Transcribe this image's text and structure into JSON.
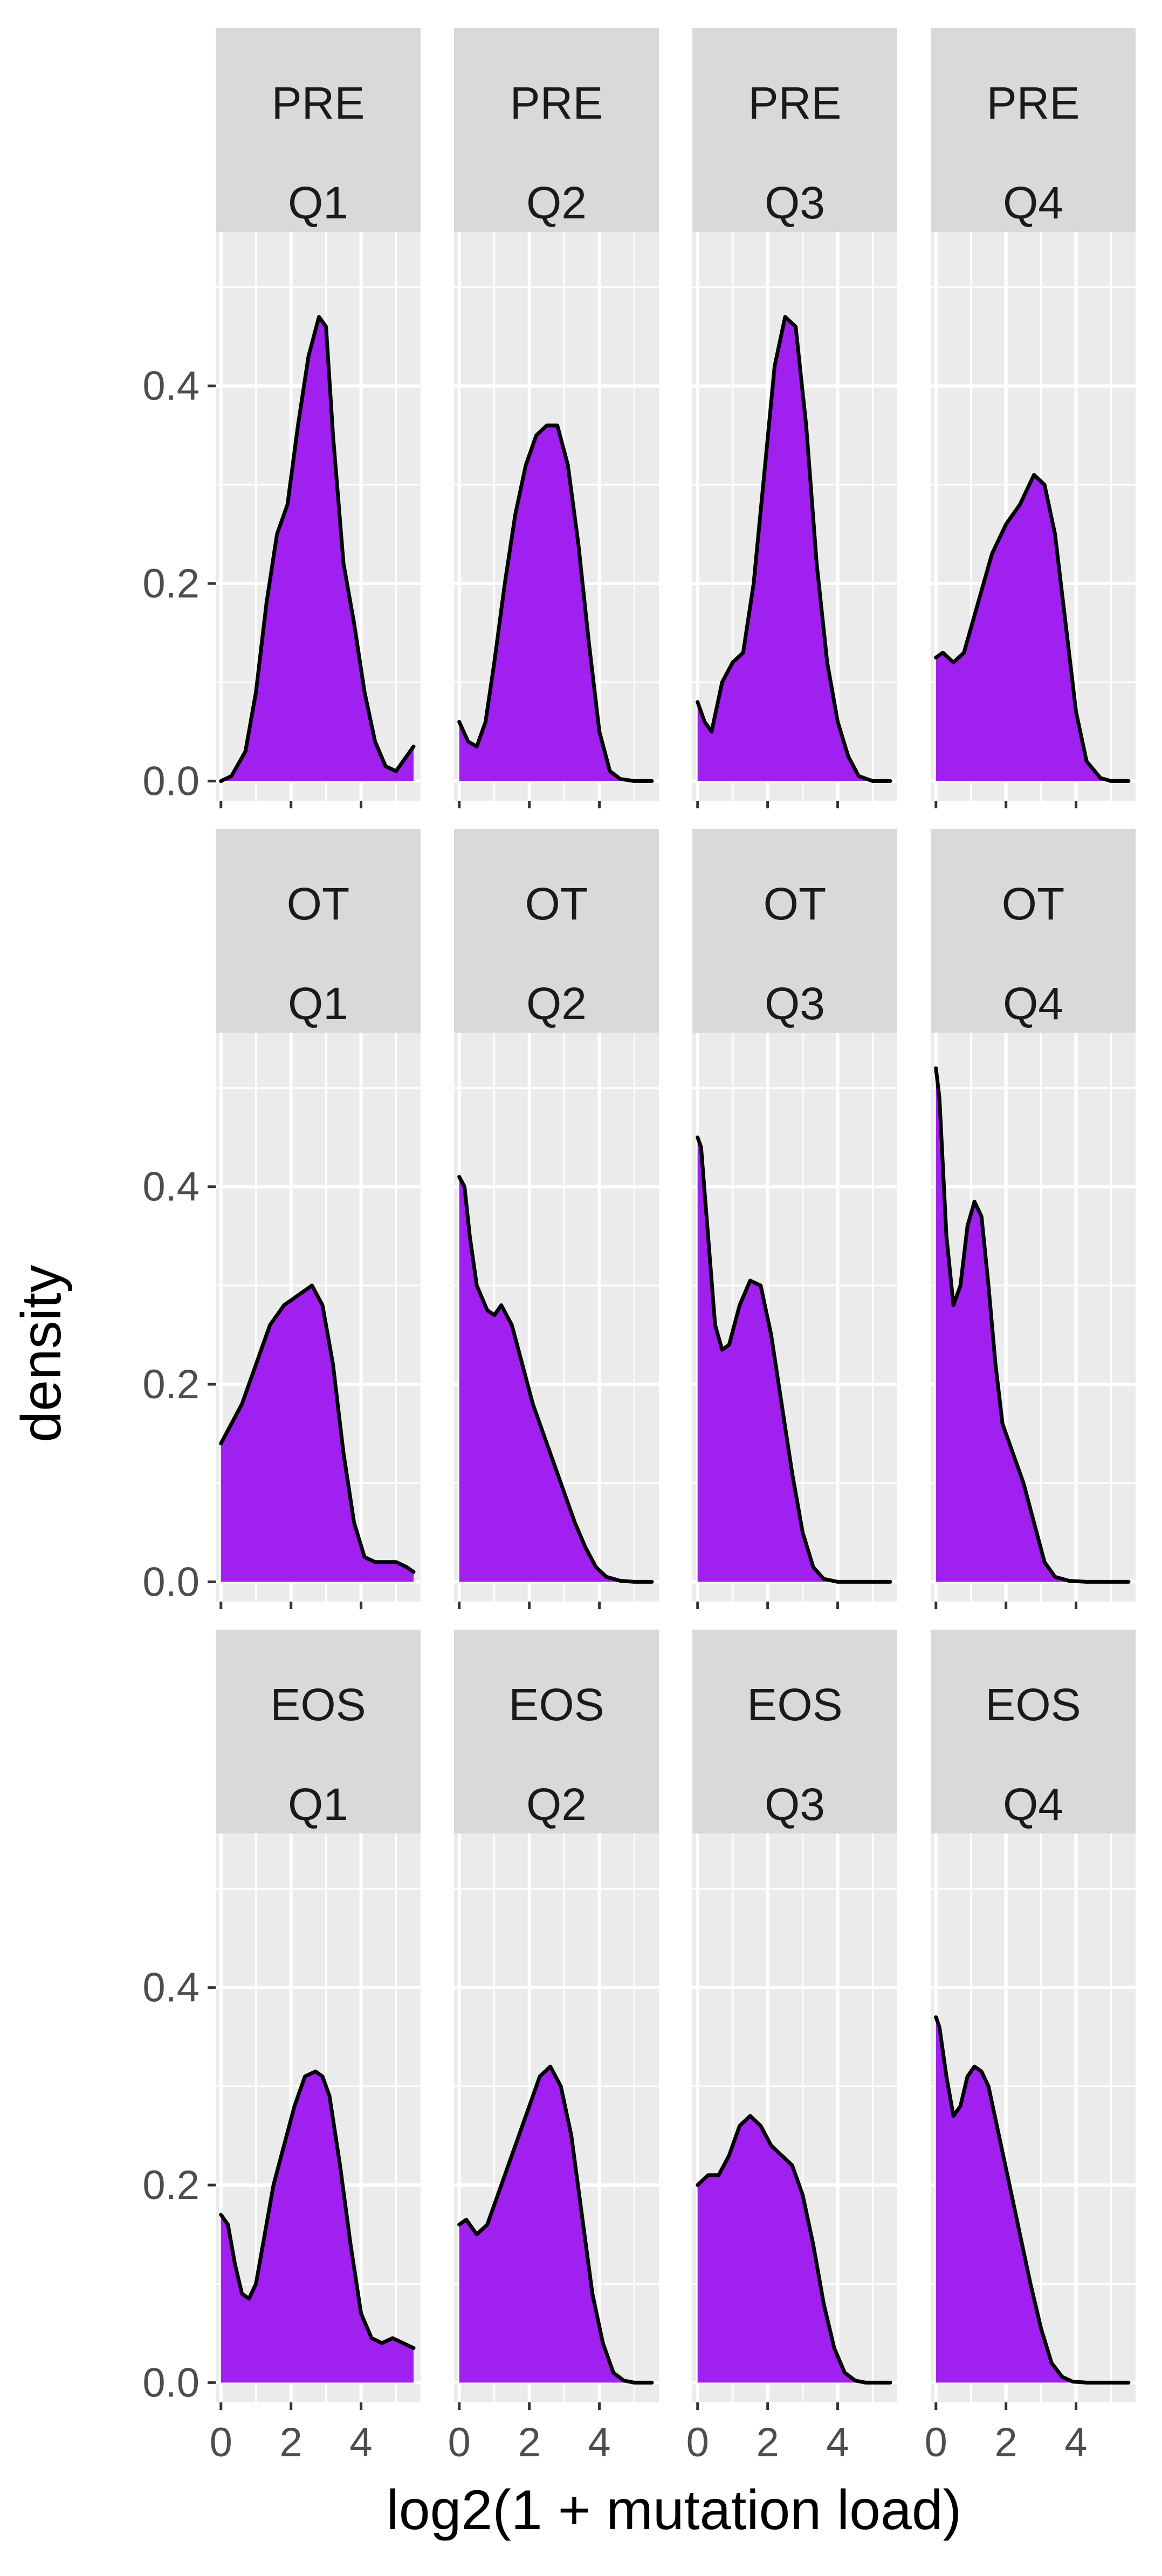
{
  "chart_data": {
    "type": "area",
    "subtype": "faceted-density",
    "xlabel": "log2(1 + mutation load)",
    "ylabel": "density",
    "xlim": [
      -0.15,
      5.7
    ],
    "ylim": [
      -0.02,
      0.556
    ],
    "x_ticks": [
      0,
      2,
      4
    ],
    "y_ticks": [
      0.0,
      0.2,
      0.4
    ],
    "x_tick_labels": [
      "0",
      "2",
      "4"
    ],
    "y_tick_labels": [
      "0.0",
      "0.2",
      "0.4"
    ],
    "grid": true,
    "fill_color": "#A020F0",
    "line_color": "#000000",
    "panel_background": "#EBEBEB",
    "strip_background": "#D9D9D9",
    "rows": [
      "PRE",
      "OT",
      "EOS"
    ],
    "cols": [
      "Q1",
      "Q2",
      "Q3",
      "Q4"
    ],
    "panels": [
      {
        "row": "PRE",
        "col": "Q1",
        "x": [
          0,
          0.3,
          0.7,
          1.0,
          1.3,
          1.6,
          1.9,
          2.2,
          2.5,
          2.8,
          3.0,
          3.2,
          3.5,
          3.8,
          4.1,
          4.4,
          4.7,
          5.0,
          5.2,
          5.5
        ],
        "y": [
          0,
          0.005,
          0.03,
          0.09,
          0.18,
          0.25,
          0.28,
          0.36,
          0.43,
          0.47,
          0.46,
          0.35,
          0.22,
          0.16,
          0.09,
          0.04,
          0.015,
          0.01,
          0.02,
          0.035
        ]
      },
      {
        "row": "PRE",
        "col": "Q2",
        "x": [
          0,
          0.25,
          0.5,
          0.75,
          1.0,
          1.3,
          1.6,
          1.9,
          2.2,
          2.5,
          2.8,
          3.1,
          3.4,
          3.7,
          4.0,
          4.3,
          4.6,
          5.0,
          5.5
        ],
        "y": [
          0.06,
          0.04,
          0.035,
          0.06,
          0.12,
          0.2,
          0.27,
          0.32,
          0.35,
          0.36,
          0.36,
          0.32,
          0.24,
          0.14,
          0.05,
          0.01,
          0.002,
          0,
          0
        ]
      },
      {
        "row": "PRE",
        "col": "Q3",
        "x": [
          0,
          0.2,
          0.4,
          0.7,
          1.0,
          1.3,
          1.6,
          1.9,
          2.2,
          2.5,
          2.8,
          3.1,
          3.4,
          3.7,
          4.0,
          4.3,
          4.6,
          5.0,
          5.5
        ],
        "y": [
          0.08,
          0.06,
          0.05,
          0.1,
          0.12,
          0.13,
          0.2,
          0.31,
          0.42,
          0.47,
          0.46,
          0.36,
          0.22,
          0.12,
          0.06,
          0.025,
          0.005,
          0,
          0
        ]
      },
      {
        "row": "PRE",
        "col": "Q4",
        "x": [
          0,
          0.2,
          0.5,
          0.8,
          1.2,
          1.6,
          2.0,
          2.4,
          2.8,
          3.1,
          3.4,
          3.7,
          4.0,
          4.3,
          4.7,
          5.0,
          5.5
        ],
        "y": [
          0.125,
          0.13,
          0.12,
          0.13,
          0.18,
          0.23,
          0.26,
          0.28,
          0.31,
          0.3,
          0.25,
          0.16,
          0.07,
          0.02,
          0.003,
          0,
          0
        ]
      },
      {
        "row": "OT",
        "col": "Q1",
        "x": [
          0,
          0.3,
          0.6,
          1.0,
          1.4,
          1.8,
          2.2,
          2.6,
          2.9,
          3.2,
          3.5,
          3.8,
          4.1,
          4.4,
          4.7,
          5.0,
          5.3,
          5.5
        ],
        "y": [
          0.14,
          0.16,
          0.18,
          0.22,
          0.26,
          0.28,
          0.29,
          0.3,
          0.28,
          0.22,
          0.13,
          0.06,
          0.025,
          0.02,
          0.02,
          0.02,
          0.015,
          0.01
        ]
      },
      {
        "row": "OT",
        "col": "Q2",
        "x": [
          0,
          0.15,
          0.3,
          0.5,
          0.8,
          1.0,
          1.2,
          1.5,
          1.8,
          2.1,
          2.4,
          2.7,
          3.0,
          3.3,
          3.6,
          3.9,
          4.2,
          4.6,
          5.0,
          5.5
        ],
        "y": [
          0.41,
          0.4,
          0.35,
          0.3,
          0.275,
          0.27,
          0.28,
          0.26,
          0.22,
          0.18,
          0.15,
          0.12,
          0.09,
          0.06,
          0.035,
          0.015,
          0.005,
          0.001,
          0,
          0
        ]
      },
      {
        "row": "OT",
        "col": "Q3",
        "x": [
          0,
          0.1,
          0.3,
          0.5,
          0.7,
          0.9,
          1.2,
          1.5,
          1.8,
          2.1,
          2.4,
          2.7,
          3.0,
          3.3,
          3.6,
          4.0,
          4.5,
          5.0,
          5.5
        ],
        "y": [
          0.45,
          0.44,
          0.35,
          0.26,
          0.235,
          0.24,
          0.28,
          0.305,
          0.3,
          0.25,
          0.18,
          0.11,
          0.05,
          0.015,
          0.003,
          0,
          0,
          0,
          0
        ]
      },
      {
        "row": "OT",
        "col": "Q4",
        "x": [
          0,
          0.1,
          0.3,
          0.5,
          0.7,
          0.9,
          1.1,
          1.3,
          1.5,
          1.7,
          1.9,
          2.2,
          2.5,
          2.8,
          3.1,
          3.4,
          3.8,
          4.3,
          5.0,
          5.5
        ],
        "y": [
          0.52,
          0.49,
          0.35,
          0.28,
          0.3,
          0.36,
          0.385,
          0.37,
          0.3,
          0.22,
          0.16,
          0.13,
          0.1,
          0.06,
          0.02,
          0.005,
          0.001,
          0,
          0,
          0
        ]
      },
      {
        "row": "EOS",
        "col": "Q1",
        "x": [
          0,
          0.2,
          0.4,
          0.6,
          0.8,
          1.0,
          1.2,
          1.5,
          1.8,
          2.1,
          2.4,
          2.7,
          2.9,
          3.1,
          3.4,
          3.7,
          4.0,
          4.3,
          4.6,
          4.9,
          5.2,
          5.5
        ],
        "y": [
          0.17,
          0.16,
          0.12,
          0.09,
          0.085,
          0.1,
          0.14,
          0.2,
          0.24,
          0.28,
          0.31,
          0.315,
          0.31,
          0.29,
          0.22,
          0.14,
          0.07,
          0.045,
          0.04,
          0.045,
          0.04,
          0.035
        ]
      },
      {
        "row": "EOS",
        "col": "Q2",
        "x": [
          0,
          0.2,
          0.5,
          0.8,
          1.1,
          1.4,
          1.7,
          2.0,
          2.3,
          2.6,
          2.9,
          3.2,
          3.5,
          3.8,
          4.1,
          4.4,
          4.7,
          5.0,
          5.5
        ],
        "y": [
          0.16,
          0.165,
          0.15,
          0.16,
          0.19,
          0.22,
          0.25,
          0.28,
          0.31,
          0.32,
          0.3,
          0.25,
          0.17,
          0.09,
          0.04,
          0.01,
          0.002,
          0,
          0
        ]
      },
      {
        "row": "EOS",
        "col": "Q3",
        "x": [
          0,
          0.3,
          0.6,
          0.9,
          1.2,
          1.5,
          1.8,
          2.1,
          2.4,
          2.7,
          3.0,
          3.3,
          3.6,
          3.9,
          4.2,
          4.5,
          4.8,
          5.2,
          5.5
        ],
        "y": [
          0.2,
          0.21,
          0.21,
          0.23,
          0.26,
          0.27,
          0.26,
          0.24,
          0.23,
          0.22,
          0.19,
          0.14,
          0.08,
          0.035,
          0.01,
          0.002,
          0,
          0,
          0
        ]
      },
      {
        "row": "EOS",
        "col": "Q4",
        "x": [
          0,
          0.1,
          0.3,
          0.5,
          0.7,
          0.9,
          1.1,
          1.3,
          1.5,
          1.8,
          2.1,
          2.4,
          2.7,
          3.0,
          3.3,
          3.6,
          3.9,
          4.3,
          5.0,
          5.5
        ],
        "y": [
          0.37,
          0.36,
          0.31,
          0.27,
          0.28,
          0.31,
          0.32,
          0.315,
          0.3,
          0.25,
          0.2,
          0.15,
          0.1,
          0.055,
          0.02,
          0.006,
          0.001,
          0,
          0,
          0
        ]
      }
    ]
  }
}
